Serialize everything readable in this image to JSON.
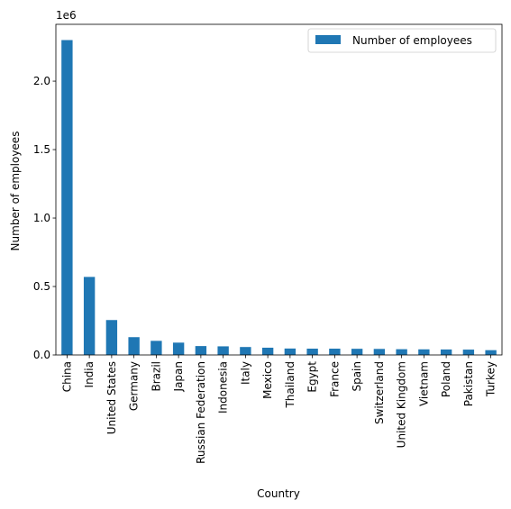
{
  "chart_data": {
    "type": "bar",
    "categories": [
      "China",
      "India",
      "United States",
      "Germany",
      "Brazil",
      "Japan",
      "Russian Federation",
      "Indonesia",
      "Italy",
      "Mexico",
      "Thailand",
      "Egypt",
      "France",
      "Spain",
      "Switzerland",
      "United Kingdom",
      "Vietnam",
      "Poland",
      "Pakistan",
      "Turkey"
    ],
    "series": [
      {
        "name": "Number of employees",
        "color": "#1f77b4",
        "values": [
          2300000,
          570000,
          255000,
          130000,
          103000,
          90000,
          65000,
          63000,
          58000,
          53000,
          47000,
          46000,
          46000,
          45000,
          44000,
          42000,
          41000,
          40000,
          39000,
          35000
        ]
      }
    ],
    "xlabel": "Country",
    "ylabel": "Number of employees",
    "ylim": [
      0,
      2415000
    ],
    "yticks": [
      0,
      500000,
      1000000,
      1500000,
      2000000
    ],
    "ytick_labels": [
      "0.0",
      "0.5",
      "1.0",
      "1.5",
      "2.0"
    ],
    "y_offset_label": "1e6",
    "legend_position": "top-right",
    "grid": false
  }
}
